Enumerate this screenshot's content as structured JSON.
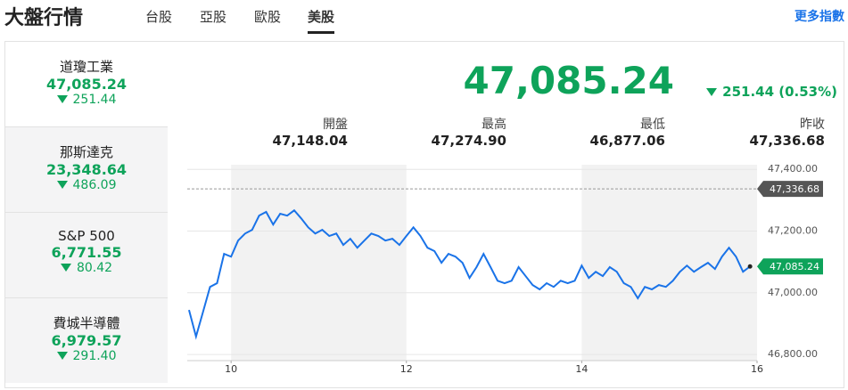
{
  "header": {
    "title": "大盤行情",
    "tabs": [
      "台股",
      "亞股",
      "歐股",
      "美股"
    ],
    "active_tab": 3,
    "more_link": "更多指數"
  },
  "indices": [
    {
      "name": "道瓊工業",
      "value": "47,085.24",
      "change": "251.44"
    },
    {
      "name": "那斯達克",
      "value": "23,348.64",
      "change": "486.09"
    },
    {
      "name": "S&P 500",
      "value": "6,771.55",
      "change": "80.42"
    },
    {
      "name": "費城半導體",
      "value": "6,979.57",
      "change": "291.40"
    }
  ],
  "active_index": 0,
  "quote": {
    "value": "47,085.24",
    "change": "251.44 (0.53%)",
    "stats": [
      {
        "label": "開盤",
        "value": "47,148.04"
      },
      {
        "label": "最高",
        "value": "47,274.90"
      },
      {
        "label": "最低",
        "value": "46,877.06"
      },
      {
        "label": "昨收",
        "value": "47,336.68"
      }
    ]
  },
  "chart_data": {
    "type": "line",
    "color": "#1a73e8",
    "x": [
      9.52,
      9.6,
      9.68,
      9.76,
      9.84,
      9.92,
      10,
      10.08,
      10.16,
      10.24,
      10.32,
      10.4,
      10.48,
      10.56,
      10.64,
      10.72,
      10.8,
      10.88,
      10.96,
      11.04,
      11.12,
      11.2,
      11.28,
      11.36,
      11.44,
      11.52,
      11.6,
      11.68,
      11.76,
      11.84,
      11.92,
      12,
      12.08,
      12.16,
      12.24,
      12.32,
      12.4,
      12.48,
      12.56,
      12.64,
      12.72,
      12.8,
      12.88,
      12.96,
      13.04,
      13.12,
      13.2,
      13.28,
      13.36,
      13.44,
      13.52,
      13.6,
      13.68,
      13.76,
      13.84,
      13.92,
      14,
      14.08,
      14.16,
      14.24,
      14.32,
      14.4,
      14.48,
      14.56,
      14.64,
      14.72,
      14.8,
      14.88,
      14.96,
      15.04,
      15.12,
      15.2,
      15.28,
      15.36,
      15.44,
      15.52,
      15.6,
      15.68,
      15.76,
      15.84,
      15.92
    ],
    "values": [
      46944,
      46858,
      46938,
      47019,
      47031,
      47126,
      47117,
      47169,
      47192,
      47204,
      47250,
      47262,
      47221,
      47256,
      47250,
      47267,
      47241,
      47212,
      47192,
      47204,
      47184,
      47192,
      47155,
      47175,
      47146,
      47169,
      47192,
      47184,
      47169,
      47175,
      47155,
      47184,
      47212,
      47184,
      47146,
      47135,
      47097,
      47126,
      47117,
      47097,
      47048,
      47083,
      47126,
      47083,
      47039,
      47031,
      47039,
      47083,
      47054,
      47025,
      47011,
      47031,
      47019,
      47039,
      47031,
      47039,
      47088,
      47048,
      47068,
      47054,
      47083,
      47068,
      47031,
      47019,
      46982,
      47019,
      47011,
      47025,
      47019,
      47039,
      47068,
      47088,
      47068,
      47083,
      47097,
      47077,
      47117,
      47146,
      47117,
      47068,
      47085.24
    ],
    "xlim": [
      9.5,
      16
    ],
    "xticks": [
      10,
      12,
      14,
      16
    ],
    "ylim": [
      46780,
      47415
    ],
    "yticks": [
      {
        "value": 46800,
        "label": "46,800.00"
      },
      {
        "value": 47000,
        "label": "47,000.00"
      },
      {
        "value": 47200,
        "label": "47,200.00"
      },
      {
        "value": 47400,
        "label": "47,400.00"
      }
    ],
    "reference_line": {
      "value": 47336.68,
      "label": "47,336.68",
      "color": "#555555"
    },
    "last_value": {
      "value": 47085.24,
      "label": "47,085.24",
      "color": "#0ea35a"
    }
  }
}
